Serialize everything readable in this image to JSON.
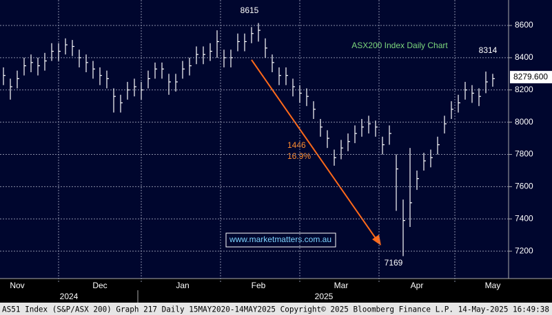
{
  "chart_data": {
    "type": "ohlc",
    "title": "ASX200 Index Daily Chart",
    "categories": [
      null,
      null,
      "Nov",
      null,
      null,
      null,
      null,
      null,
      null,
      null,
      null,
      null,
      null,
      null,
      "Dec",
      null,
      null,
      null,
      null,
      null,
      null,
      null,
      null,
      null,
      null,
      null,
      "Jan",
      null,
      null,
      null,
      null,
      null,
      null,
      null,
      null,
      null,
      null,
      "Feb",
      null,
      null,
      null,
      null,
      null,
      null,
      null,
      null,
      null,
      null,
      null,
      "Mar",
      null,
      null,
      null,
      null,
      null,
      null,
      null,
      null,
      null,
      null,
      "Apr",
      null,
      null,
      null,
      null,
      null,
      null,
      null,
      null,
      null,
      null,
      "May"
    ],
    "year_labels": [
      "2024",
      "2025"
    ],
    "series": [
      {
        "name": "close",
        "color": "#ffffff",
        "values": [
          8290,
          8220,
          8270,
          8350,
          8370,
          8350,
          8380,
          8440,
          8440,
          8480,
          8470,
          8400,
          8370,
          8330,
          8290,
          8270,
          8160,
          8120,
          8200,
          8220,
          8200,
          8270,
          8330,
          8330,
          8250,
          8250,
          8330,
          8350,
          8420,
          8420,
          8440,
          8500,
          8400,
          8400,
          8500,
          8500,
          8550,
          8570,
          8460,
          8370,
          8290,
          8290,
          8220,
          8180,
          8160,
          8080,
          7970,
          7900,
          7780,
          7840,
          7880,
          7930,
          7970,
          7990,
          7970,
          7860,
          7930,
          7710,
          7390,
          7500,
          7650,
          7760,
          7780,
          7860,
          7990,
          8080,
          8120,
          8200,
          8180,
          8160,
          8250,
          8270
        ]
      },
      {
        "name": "high",
        "color": "#ffffff",
        "values": [
          8340,
          8270,
          8320,
          8400,
          8420,
          8400,
          8430,
          8490,
          8490,
          8520,
          8510,
          8450,
          8420,
          8380,
          8340,
          8320,
          8210,
          8170,
          8250,
          8270,
          8250,
          8320,
          8370,
          8370,
          8300,
          8300,
          8380,
          8400,
          8470,
          8470,
          8490,
          8570,
          8450,
          8450,
          8550,
          8550,
          8590,
          8615,
          8520,
          8420,
          8340,
          8340,
          8270,
          8230,
          8210,
          8130,
          8020,
          7950,
          7830,
          7890,
          7930,
          7980,
          8020,
          8040,
          8010,
          7910,
          7980,
          7800,
          7520,
          7840,
          7700,
          7810,
          7830,
          7910,
          8040,
          8130,
          8170,
          8250,
          8230,
          8210,
          8314,
          8300
        ]
      },
      {
        "name": "low",
        "color": "#ffffff",
        "values": [
          8230,
          8140,
          8210,
          8290,
          8310,
          8290,
          8320,
          8380,
          8380,
          8420,
          8410,
          8340,
          8310,
          8270,
          8230,
          8210,
          8060,
          8060,
          8140,
          8160,
          8140,
          8210,
          8270,
          8270,
          8170,
          8190,
          8270,
          8290,
          8360,
          8360,
          8380,
          8400,
          8340,
          8340,
          8440,
          8440,
          8490,
          8500,
          8400,
          8310,
          8230,
          8230,
          8160,
          8120,
          8100,
          8020,
          7910,
          7840,
          7730,
          7770,
          7820,
          7870,
          7910,
          7930,
          7910,
          7800,
          7860,
          7450,
          7169,
          7350,
          7580,
          7700,
          7720,
          7800,
          7930,
          8020,
          8060,
          8140,
          8120,
          8100,
          8180,
          8220
        ]
      }
    ],
    "ylim": [
      7030,
      8758
    ],
    "yticks": [
      7200,
      7400,
      7600,
      7800,
      8000,
      8200,
      8400,
      8600
    ],
    "grid": true,
    "last_price": {
      "value": 8279.6,
      "label": "8279.600"
    },
    "annotations": [
      "8615",
      "7169",
      "8314",
      "1446",
      "16.9%"
    ],
    "watermark": "www.marketmatters.com.au",
    "footer": "AS51 Index (S&P/ASX 200) Graph 217  Daily 15MAY2020-14MAY2025  Copyright© 2025 Bloomberg Finance L.P.  14-May-2025 16:49:38"
  }
}
